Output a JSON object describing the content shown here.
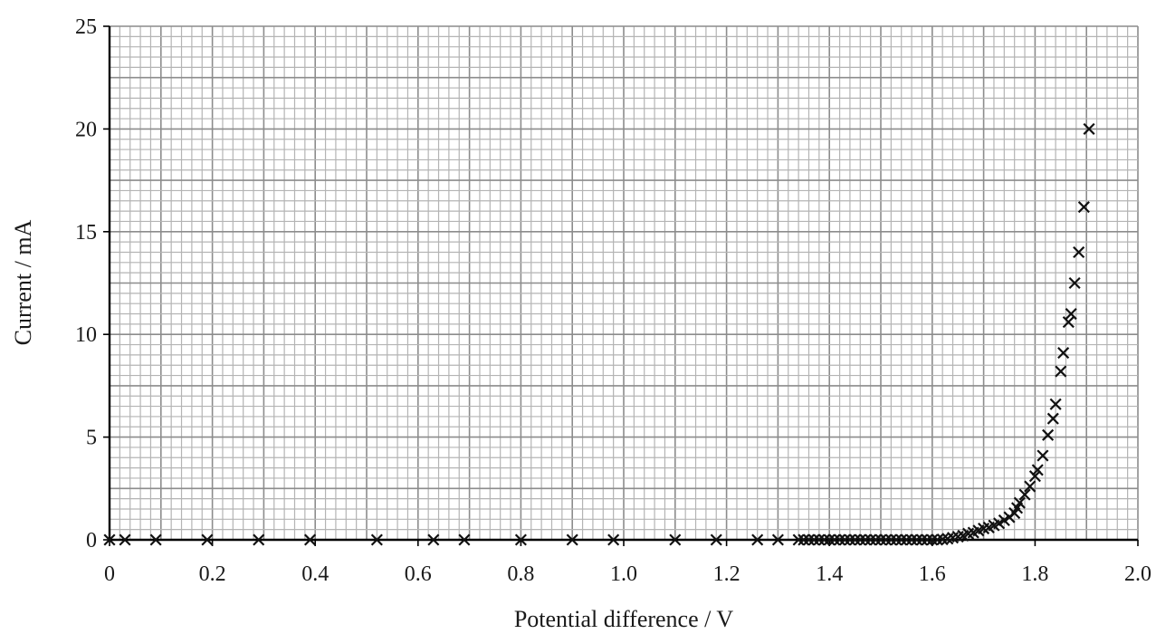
{
  "chart_data": {
    "type": "scatter",
    "title": "",
    "xlabel": "Potential difference / V",
    "ylabel": "Current / mA",
    "xlim": [
      0,
      2.0
    ],
    "ylim": [
      0,
      25
    ],
    "x_ticks": [
      "0",
      "0.2",
      "0.4",
      "0.6",
      "0.8",
      "1.0",
      "1.2",
      "1.4",
      "1.6",
      "1.8",
      "2.0"
    ],
    "y_ticks": [
      "0",
      "5",
      "10",
      "15",
      "20",
      "25"
    ],
    "x_tick_values": [
      0,
      0.2,
      0.4,
      0.6,
      0.8,
      1.0,
      1.2,
      1.4,
      1.6,
      1.8,
      2.0
    ],
    "y_tick_values": [
      0,
      5,
      10,
      15,
      20,
      25
    ],
    "grid": true,
    "marker": "cross",
    "series": [
      {
        "x": [
          0.0,
          0.03,
          0.09,
          0.19,
          0.29,
          0.39,
          0.52,
          0.63,
          0.69,
          0.8,
          0.9,
          0.98,
          1.1,
          1.18,
          1.26,
          1.3,
          1.34,
          1.35,
          1.36,
          1.37,
          1.38,
          1.39,
          1.4,
          1.41,
          1.42,
          1.43,
          1.44,
          1.45,
          1.46,
          1.47,
          1.48,
          1.49,
          1.5,
          1.51,
          1.52,
          1.53,
          1.54,
          1.55,
          1.56,
          1.57,
          1.58,
          1.59,
          1.6,
          1.61,
          1.62,
          1.63,
          1.64,
          1.65,
          1.66,
          1.67,
          1.68,
          1.69,
          1.7,
          1.71,
          1.72,
          1.73,
          1.74,
          1.75,
          1.76,
          1.765,
          1.77,
          1.78,
          1.79,
          1.8,
          1.805,
          1.815,
          1.825,
          1.835,
          1.84,
          1.85,
          1.855,
          1.865,
          1.87,
          1.877,
          1.885,
          1.895,
          1.905
        ],
        "y": [
          0,
          0,
          0,
          0,
          0,
          0,
          0,
          0,
          0,
          0,
          0,
          0,
          0,
          0,
          0,
          0,
          0,
          0,
          0,
          0,
          0,
          0,
          0,
          0,
          0,
          0,
          0,
          0,
          0,
          0,
          0,
          0,
          0,
          0,
          0,
          0,
          0,
          0,
          0,
          0,
          0,
          0,
          0,
          0,
          0.02,
          0.05,
          0.1,
          0.15,
          0.2,
          0.3,
          0.35,
          0.45,
          0.55,
          0.6,
          0.7,
          0.8,
          0.95,
          1.1,
          1.3,
          1.55,
          1.8,
          2.2,
          2.6,
          3.1,
          3.4,
          4.1,
          5.1,
          5.9,
          6.6,
          8.2,
          9.1,
          10.6,
          11.0,
          12.5,
          14.0,
          16.2,
          20.0
        ]
      }
    ]
  }
}
